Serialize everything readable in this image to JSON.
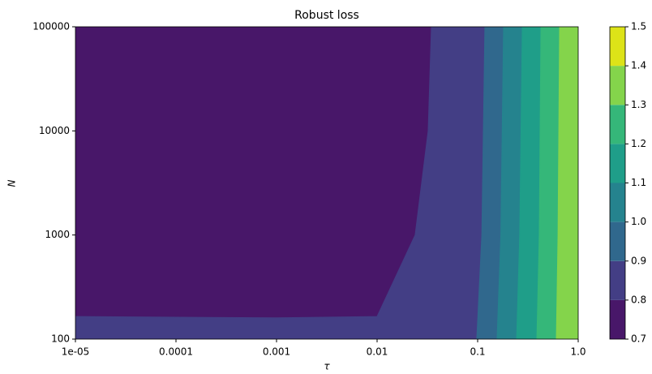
{
  "chart_data": {
    "type": "contourf",
    "title": "Robust loss",
    "xlabel": "τ",
    "ylabel": "N",
    "xscale": "log",
    "yscale": "log",
    "xlim": [
      1e-05,
      1.0
    ],
    "ylim": [
      100,
      100000
    ],
    "xticks": [
      {
        "value": 1e-05,
        "label": "1e-05"
      },
      0.0001,
      0.001,
      0.01,
      0.1,
      {
        "value": 1.0,
        "label": "1.0"
      }
    ],
    "yticks": [
      100,
      1000,
      10000,
      100000
    ],
    "levels": [
      0.7,
      0.8,
      0.9,
      1.0,
      1.1,
      1.2,
      1.3,
      1.4,
      1.5
    ],
    "colors": [
      "#481769",
      "#433e85",
      "#30688d",
      "#25838e",
      "#1f9e89",
      "#35b779",
      "#84d44b",
      "#dde318"
    ],
    "colorbar_ticks": [
      0.7,
      0.8,
      0.9,
      {
        "value": 1.0,
        "label": "1.0"
      },
      1.1,
      1.2,
      1.3,
      1.4,
      1.5
    ],
    "boundaries": [
      {
        "level": 0.8,
        "x": [
          1e-05,
          0.001,
          0.01,
          0.0239,
          0.0322,
          0.0347
        ],
        "y": [
          165,
          160,
          165,
          1000,
          10000,
          100000
        ]
      },
      {
        "level": 0.9,
        "x": [
          0.098,
          0.11,
          0.118
        ],
        "y": [
          100,
          1000,
          100000
        ]
      },
      {
        "level": 1.0,
        "x": [
          0.156,
          0.17,
          0.181
        ],
        "y": [
          100,
          1000,
          100000
        ]
      },
      {
        "level": 1.1,
        "x": [
          0.244,
          0.262,
          0.278
        ],
        "y": [
          100,
          1000,
          100000
        ]
      },
      {
        "level": 1.2,
        "x": [
          0.388,
          0.41,
          0.426
        ],
        "y": [
          100,
          1000,
          100000
        ]
      },
      {
        "level": 1.3,
        "x": [
          0.606,
          0.63,
          0.653
        ],
        "y": [
          100,
          1000,
          100000
        ]
      }
    ]
  }
}
